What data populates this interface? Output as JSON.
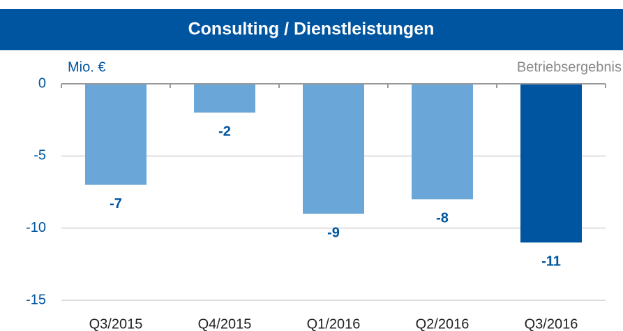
{
  "chart_data": {
    "type": "bar",
    "title": "Consulting / Dienstleistungen",
    "y_label": "Mio. €",
    "series_label": "Betriebsergebnis",
    "categories": [
      "Q3/2015",
      "Q4/2015",
      "Q1/2016",
      "Q2/2016",
      "Q3/2016"
    ],
    "values": [
      -7,
      -2,
      -9,
      -8,
      -11
    ],
    "colors": [
      "#6aa6d8",
      "#6aa6d8",
      "#6aa6d8",
      "#6aa6d8",
      "#0055a0"
    ],
    "ylim": [
      -15,
      0
    ],
    "yticks": [
      0,
      -5,
      -10,
      -15
    ],
    "grid": true
  }
}
